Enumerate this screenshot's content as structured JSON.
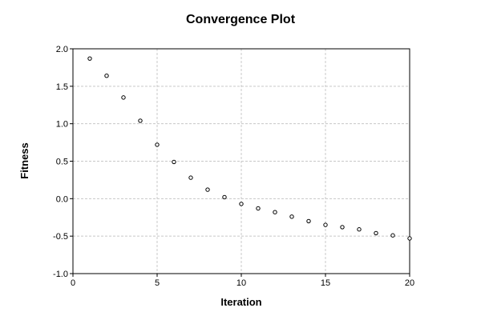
{
  "chart_data": {
    "type": "scatter",
    "title": "Convergence Plot",
    "xlabel": "Iteration",
    "ylabel": "Fitness",
    "xlim": [
      0,
      20
    ],
    "ylim": [
      -1.0,
      2.0
    ],
    "x_ticks": [
      0,
      5,
      10,
      15,
      20
    ],
    "y_ticks": [
      -1.0,
      -0.5,
      0.0,
      0.5,
      1.0,
      1.5,
      2.0
    ],
    "x_tick_labels": [
      "0",
      "5",
      "10",
      "15",
      "20"
    ],
    "y_tick_labels": [
      "-1.0",
      "-0.5",
      "0.0",
      "0.5",
      "1.0",
      "1.5",
      "2.0"
    ],
    "grid": true,
    "legend": "none",
    "marker": "open-circle",
    "series": [
      {
        "x": [
          1,
          2,
          3,
          4,
          5,
          6,
          7,
          8,
          9,
          10,
          11,
          12,
          13,
          14,
          15,
          16,
          17,
          18,
          19,
          20
        ],
        "y": [
          1.87,
          1.64,
          1.35,
          1.04,
          0.72,
          0.49,
          0.28,
          0.12,
          0.02,
          -0.07,
          -0.13,
          -0.18,
          -0.24,
          -0.3,
          -0.35,
          -0.38,
          -0.41,
          -0.46,
          -0.49,
          -0.53
        ]
      }
    ]
  }
}
